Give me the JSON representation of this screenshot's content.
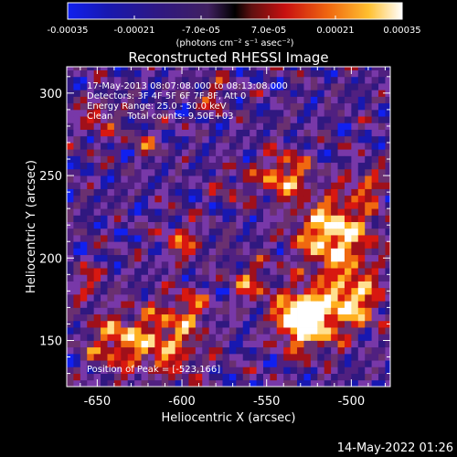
{
  "colorbar": {
    "tick_labels": [
      "-0.00035",
      "-0.00021",
      "-7.0e-05",
      "7.0e-05",
      "0.00021",
      "0.00035"
    ],
    "unit_label": "(photons cm⁻² s⁻¹ asec⁻²)"
  },
  "chart_data": {
    "type": "heatmap",
    "title": "Reconstructed RHESSI Image",
    "xlabel": "Heliocentric X (arcsec)",
    "ylabel": "Heliocentric Y (arcsec)",
    "xlim": [
      -668,
      -477
    ],
    "ylim": [
      122,
      316
    ],
    "x_ticks": [
      -650,
      -600,
      -550,
      -500
    ],
    "y_ticks": [
      150,
      200,
      250,
      300
    ],
    "x_tick_labels": [
      "-650",
      "-600",
      "-550",
      "-500"
    ],
    "y_tick_labels": [
      "150",
      "200",
      "250",
      "300"
    ],
    "value_range": [
      -0.00035,
      0.00035
    ],
    "colormap": [
      "#1020f0",
      "#1818b0",
      "#301880",
      "#502080",
      "#7838a8",
      "#6a3070",
      "#a0101a",
      "#d81810",
      "#f06810",
      "#ffb020",
      "#ffe090",
      "#ffffff"
    ],
    "peak_position": [
      -523,
      166
    ],
    "annotations": [
      "17-May-2013 08:07:08.000 to 08:13:08.000",
      "Detectors: 3F 4F 5F 6F 7F 8F, Att 0",
      "Energy Range: 25.0 - 50.0 keV",
      "Clean     Total counts: 9.50E+03"
    ],
    "peak_label": "Position of Peak = [-523,166]"
  },
  "footer": {
    "date": "14-May-2022 01:26"
  }
}
